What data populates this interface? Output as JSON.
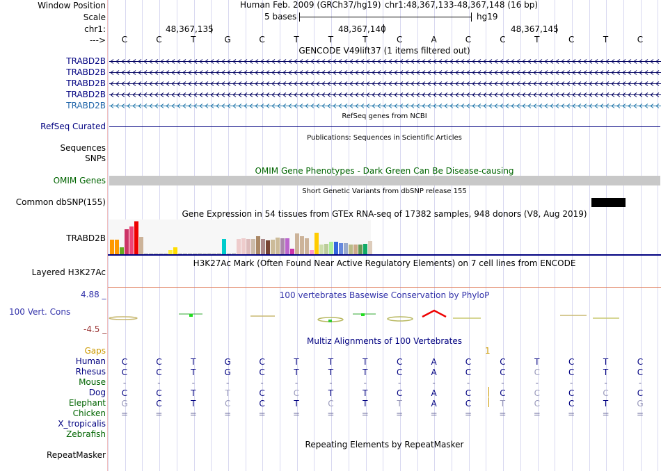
{
  "header": {
    "window_position_label": "Window Position",
    "assembly": "Human Feb. 2009 (GRCh37/hg19)",
    "position": "chr1:48,367,133-48,367,148 (16 bp)",
    "scale_label": "Scale",
    "scale_value": "5 bases",
    "scale_db": "hg19",
    "chrom_label": "chr1:",
    "ticks": [
      "48,367,135",
      "48,367,140",
      "48,367,145"
    ],
    "strand_label": "--->",
    "sequence": [
      "C",
      "C",
      "T",
      "G",
      "C",
      "T",
      "T",
      "T",
      "C",
      "A",
      "C",
      "C",
      "T",
      "C",
      "T",
      "C"
    ]
  },
  "gencode": {
    "title": "GENCODE V49lift37 (1 items filtered out)",
    "tracks": [
      "TRABD2B",
      "TRABD2B",
      "TRABD2B",
      "TRABD2B",
      "TRABD2B"
    ]
  },
  "refseq": {
    "title": "RefSeq genes from NCBI",
    "label": "RefSeq Curated"
  },
  "publications": {
    "title": "Publications: Sequences in Scientific Articles",
    "labels": [
      "Sequences",
      "SNPs"
    ]
  },
  "omim": {
    "title": "OMIM Gene Phenotypes - Dark Green Can Be Disease-causing",
    "label": "OMIM Genes"
  },
  "dbsnp": {
    "title": "Short Genetic Variants from dbSNP release 155",
    "label": "Common dbSNP(155)"
  },
  "gtex": {
    "title": "Gene Expression in 54 tissues from GTEx RNA-seq of 17382 samples, 948 donors (V8, Aug 2019)",
    "label": "TRABD2B",
    "bars": [
      {
        "v": 0.42,
        "c": "#ff9900"
      },
      {
        "v": 0.42,
        "c": "#ff9900"
      },
      {
        "v": 0.2,
        "c": "#66aa22"
      },
      {
        "v": 0.72,
        "c": "#cc3366"
      },
      {
        "v": 0.8,
        "c": "#ee4477"
      },
      {
        "v": 0.95,
        "c": "#ee0000"
      },
      {
        "v": 0.5,
        "c": "#ccb399"
      },
      {
        "v": 0.02,
        "c": "#aaaaaa"
      },
      {
        "v": 0.02,
        "c": "#aaaaaa"
      },
      {
        "v": 0.02,
        "c": "#aaaaaa"
      },
      {
        "v": 0.02,
        "c": "#aaaaaa"
      },
      {
        "v": 0.02,
        "c": "#aaaaaa"
      },
      {
        "v": 0.12,
        "c": "#ffee33"
      },
      {
        "v": 0.2,
        "c": "#ffdd00"
      },
      {
        "v": 0.02,
        "c": "#aaaaaa"
      },
      {
        "v": 0.02,
        "c": "#aaaaaa"
      },
      {
        "v": 0.02,
        "c": "#aaaaaa"
      },
      {
        "v": 0.02,
        "c": "#aaaaaa"
      },
      {
        "v": 0.04,
        "c": "#cccccc"
      },
      {
        "v": 0.02,
        "c": "#aaaaaa"
      },
      {
        "v": 0.04,
        "c": "#cccccc"
      },
      {
        "v": 0.02,
        "c": "#aaaaaa"
      },
      {
        "v": 0.04,
        "c": "#cccccc"
      },
      {
        "v": 0.44,
        "c": "#00cccc"
      },
      {
        "v": 0.02,
        "c": "#aaaaaa"
      },
      {
        "v": 0.04,
        "c": "#cccccc"
      },
      {
        "v": 0.44,
        "c": "#eecccc"
      },
      {
        "v": 0.46,
        "c": "#eecccc"
      },
      {
        "v": 0.44,
        "c": "#ddbbbb"
      },
      {
        "v": 0.44,
        "c": "#ccbbaa"
      },
      {
        "v": 0.52,
        "c": "#aa8866"
      },
      {
        "v": 0.44,
        "c": "#aa8888"
      },
      {
        "v": 0.4,
        "c": "#774433"
      },
      {
        "v": 0.42,
        "c": "#ccbb99"
      },
      {
        "v": 0.48,
        "c": "#ccbb99"
      },
      {
        "v": 0.46,
        "c": "#aa88aa"
      },
      {
        "v": 0.46,
        "c": "#bb66cc"
      },
      {
        "v": 0.16,
        "c": "#cc33aa"
      },
      {
        "v": 0.6,
        "c": "#ccb399"
      },
      {
        "v": 0.52,
        "c": "#ccb399"
      },
      {
        "v": 0.46,
        "c": "#ccb399"
      },
      {
        "v": 0.12,
        "c": "#ff99cc"
      },
      {
        "v": 0.62,
        "c": "#ffcc00"
      },
      {
        "v": 0.28,
        "c": "#ccddaa"
      },
      {
        "v": 0.3,
        "c": "#bbcc99"
      },
      {
        "v": 0.36,
        "c": "#aaee99"
      },
      {
        "v": 0.36,
        "c": "#3366dd"
      },
      {
        "v": 0.32,
        "c": "#6688dd"
      },
      {
        "v": 0.32,
        "c": "#99aacc"
      },
      {
        "v": 0.28,
        "c": "#bbbb88"
      },
      {
        "v": 0.28,
        "c": "#ccaa88"
      },
      {
        "v": 0.28,
        "c": "#669955"
      },
      {
        "v": 0.3,
        "c": "#11aa66"
      },
      {
        "v": 0.38,
        "c": "#ddccbb"
      }
    ]
  },
  "h3k27ac": {
    "title": "H3K27Ac Mark (Often Found Near Active Regulatory Elements) on 7 cell lines from ENCODE",
    "label": "Layered H3K27Ac"
  },
  "phylop": {
    "title": "100 vertebrates Basewise Conservation by PhyloP",
    "label": "100 Vert. Cons",
    "max": "4.88 _",
    "min": "-4.5 _"
  },
  "multiz": {
    "title": "Multiz Alignments of 100 Vertebrates",
    "gaps_label": "Gaps",
    "gaps_value": "1",
    "species": [
      {
        "name": "Human",
        "bases": [
          "C",
          "C",
          "T",
          "G",
          "C",
          "T",
          "T",
          "T",
          "C",
          "A",
          "C",
          "C",
          "T",
          "C",
          "T",
          "C"
        ]
      },
      {
        "name": "Rhesus",
        "bases": [
          "C",
          "C",
          "T",
          "G",
          "C",
          "T",
          "T",
          "T",
          "C",
          "A",
          "C",
          "C",
          "C",
          "C",
          "T",
          "C"
        ]
      },
      {
        "name": "Mouse",
        "bases": [
          "-",
          "-",
          "-",
          "-",
          "-",
          "-",
          "-",
          "-",
          "-",
          "-",
          "-",
          "-",
          "-",
          "-",
          "-",
          "-"
        ]
      },
      {
        "name": "Dog",
        "bases": [
          "C",
          "C",
          "T",
          "T",
          "C",
          "C",
          "T",
          "T",
          "C",
          "A",
          "C",
          "C",
          "C",
          "C",
          "C",
          "C"
        ]
      },
      {
        "name": "Elephant",
        "bases": [
          "G",
          "C",
          "T",
          "C",
          "C",
          "T",
          "C",
          "T",
          "T",
          "A",
          "C",
          "T",
          "C",
          "C",
          "T",
          "G"
        ]
      },
      {
        "name": "Chicken",
        "bases": [
          "=",
          "=",
          "=",
          "=",
          "=",
          "=",
          "=",
          "=",
          "=",
          "=",
          "=",
          "=",
          "=",
          "=",
          "=",
          "="
        ]
      },
      {
        "name": "X_tropicalis",
        "bases": []
      },
      {
        "name": "Zebrafish",
        "bases": []
      }
    ]
  },
  "repeatmasker": {
    "title": "Repeating Elements by RepeatMasker",
    "label": "RepeatMasker"
  },
  "colors": {
    "navy": "#000080",
    "green": "#006400",
    "gold": "#cc9900",
    "gencode_light": "#2266aa",
    "phylop_blue": "#3333aa"
  }
}
